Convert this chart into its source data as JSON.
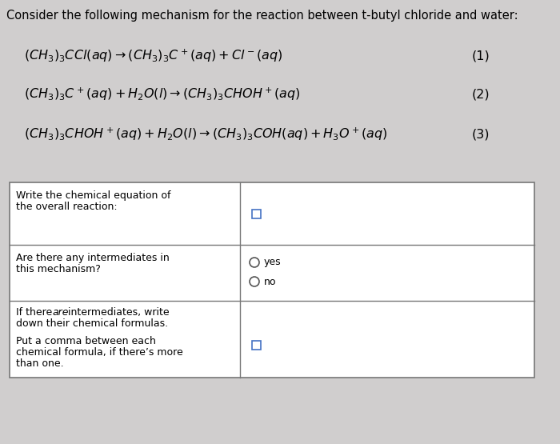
{
  "title": "Consider the following mechanism for the reaction between t-butyl chloride and water:",
  "bg_color": "#d0cece",
  "white": "#ffffff",
  "line1": "$(CH_3)_3CCl(aq) \\rightarrow (CH_3)_3C^+(aq) + Cl^-(aq)$",
  "line2": "$(CH_3)_3C^+(aq) + H_2O(l) \\rightarrow (CH_3)_3CHOH^+(aq)$",
  "line3": "$(CH_3)_3CHOH^+(aq) + H_2O(l) \\rightarrow (CH_3)_3COH(aq) + H_3O^+(aq)$",
  "label1": "(1)",
  "label2": "(2)",
  "label3": "(3)",
  "row1_left1": "Write the chemical equation of",
  "row1_left2": "the overall reaction:",
  "row2_left1": "Are there any intermediates in",
  "row2_left2": "this mechanism?",
  "row3_left1": "If there are intermediates, write",
  "row3_left2": "down their chemical formulas.",
  "row3_left3": "Put a comma between each",
  "row3_left4": "chemical formula, if there’s more",
  "row3_left5": "than one.",
  "yes_text": "yes",
  "no_text": "no",
  "eq_fontsize": 11.5,
  "label_fontsize": 11.5,
  "cell_fontsize": 9.0,
  "title_fontsize": 10.5
}
